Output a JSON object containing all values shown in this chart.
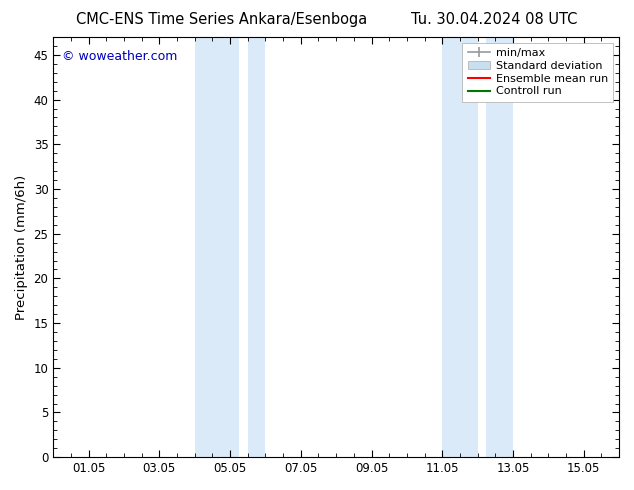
{
  "title_left": "CMC-ENS Time Series Ankara/Esenboga",
  "title_right": "Tu. 30.04.2024 08 UTC",
  "ylabel": "Precipitation (mm/6h)",
  "ylim": [
    0,
    47
  ],
  "yticks": [
    0,
    5,
    10,
    15,
    20,
    25,
    30,
    35,
    40,
    45
  ],
  "xlim": [
    0.0,
    16.0
  ],
  "xtick_positions": [
    1,
    3,
    5,
    7,
    9,
    11,
    13,
    15
  ],
  "xtick_labels": [
    "01.05",
    "03.05",
    "05.05",
    "07.05",
    "09.05",
    "11.05",
    "13.05",
    "15.05"
  ],
  "watermark": "© woweather.com",
  "watermark_color": "#0000bb",
  "background_color": "#ffffff",
  "shaded_regions": [
    {
      "xstart": 4.0,
      "xend": 5.25,
      "color": "#daeaf8"
    },
    {
      "xstart": 5.5,
      "xend": 6.0,
      "color": "#daeaf8"
    },
    {
      "xstart": 11.0,
      "xend": 12.0,
      "color": "#daeaf8"
    },
    {
      "xstart": 12.25,
      "xend": 13.0,
      "color": "#daeaf8"
    }
  ],
  "legend_minmax_color": "#999999",
  "legend_std_color": "#c8dff0",
  "legend_ensemble_color": "#ff0000",
  "legend_control_color": "#007700",
  "title_fontsize": 10.5,
  "tick_fontsize": 8.5,
  "ylabel_fontsize": 9.5,
  "watermark_fontsize": 9,
  "legend_fontsize": 8
}
